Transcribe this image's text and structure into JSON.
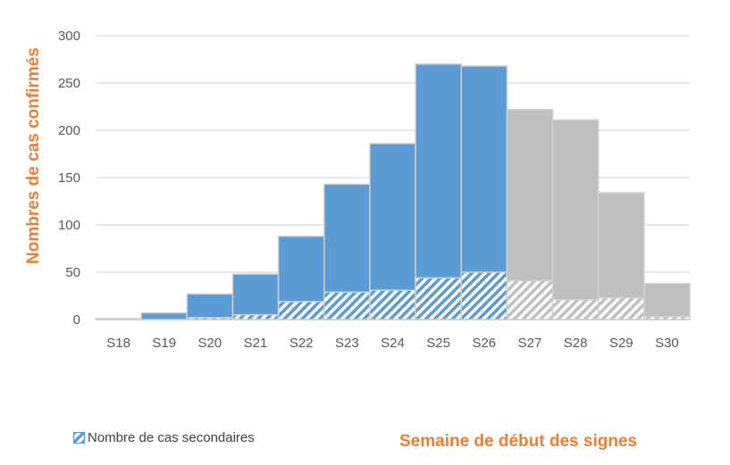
{
  "chart_data": {
    "type": "bar",
    "stacked_overlay": true,
    "categories": [
      "S18",
      "S19",
      "S20",
      "S21",
      "S22",
      "S23",
      "S24",
      "S25",
      "S26",
      "S27",
      "S28",
      "S29",
      "S30"
    ],
    "series": [
      {
        "values": [
          1,
          7,
          27,
          48,
          88,
          143,
          186,
          270,
          268,
          222,
          211,
          134,
          38
        ]
      },
      {
        "name": "Nombre de cas secondaires",
        "values": [
          0,
          0,
          2,
          5,
          19,
          29,
          31,
          44,
          50,
          41,
          21,
          23,
          3
        ]
      }
    ],
    "ylabel": "Nombres de cas confirmés",
    "xlabel": "Semaine de début des signes",
    "ylim": [
      0,
      300
    ],
    "yticks": [
      0,
      50,
      100,
      150,
      200,
      250,
      300
    ],
    "grid": true,
    "legend_position": "bottom-left",
    "colors": {
      "recent_weeks_from": "S27",
      "blue": "#5b9bd5",
      "gray": "#bfbfbf",
      "label": "#ed7d31"
    }
  }
}
